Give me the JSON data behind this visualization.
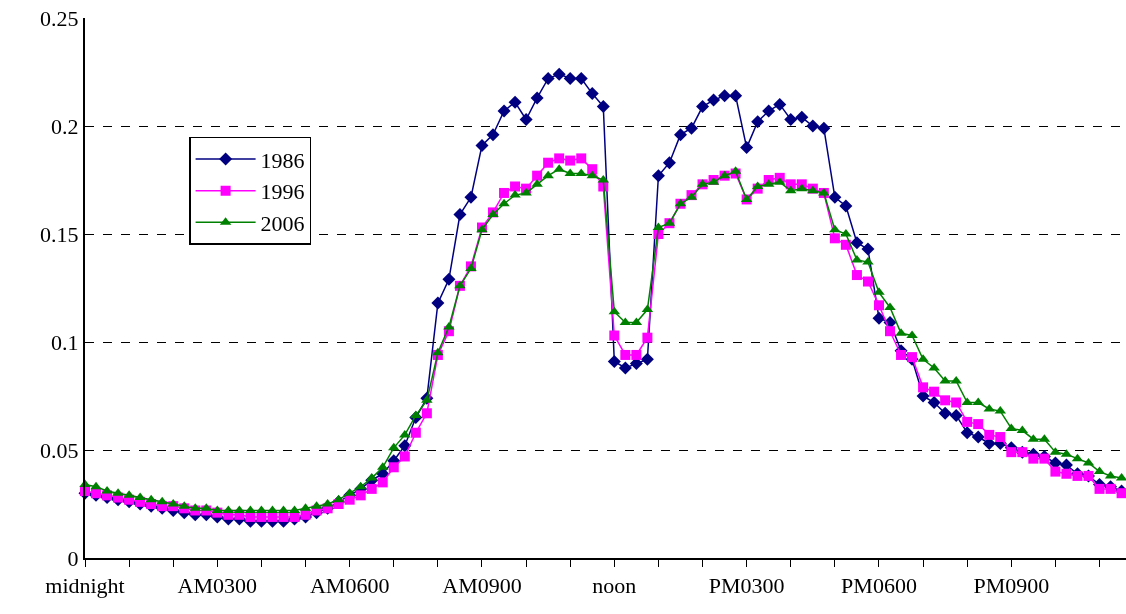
{
  "chart_data": {
    "type": "line",
    "categories": [
      "midnight",
      null,
      null,
      null,
      null,
      null,
      null,
      null,
      null,
      null,
      null,
      null,
      "AM0300",
      null,
      null,
      null,
      null,
      null,
      null,
      null,
      null,
      null,
      null,
      null,
      "AM0600",
      null,
      null,
      null,
      null,
      null,
      null,
      null,
      null,
      null,
      null,
      null,
      "AM0900",
      null,
      null,
      null,
      null,
      null,
      null,
      null,
      null,
      null,
      null,
      null,
      "noon",
      null,
      null,
      null,
      null,
      null,
      null,
      null,
      null,
      null,
      null,
      null,
      "PM0300",
      null,
      null,
      null,
      null,
      null,
      null,
      null,
      null,
      null,
      null,
      null,
      "PM0600",
      null,
      null,
      null,
      null,
      null,
      null,
      null,
      null,
      null,
      null,
      null,
      "PM0900",
      null,
      null,
      null,
      null,
      null,
      null,
      null,
      null,
      null,
      null
    ],
    "series": [
      {
        "name": "1986",
        "color": "#000080",
        "marker": "diamond",
        "values": [
          0.03,
          0.029,
          0.028,
          0.027,
          0.026,
          0.025,
          0.024,
          0.023,
          0.022,
          0.021,
          0.02,
          0.02,
          0.019,
          0.018,
          0.018,
          0.017,
          0.017,
          0.017,
          0.017,
          0.018,
          0.019,
          0.021,
          0.023,
          0.026,
          0.029,
          0.032,
          0.036,
          0.039,
          0.045,
          0.052,
          0.065,
          0.074,
          0.118,
          0.129,
          0.159,
          0.167,
          0.191,
          0.196,
          0.207,
          0.211,
          0.203,
          0.213,
          0.222,
          0.224,
          0.222,
          0.222,
          0.215,
          0.209,
          0.091,
          0.088,
          0.09,
          0.092,
          0.177,
          0.183,
          0.196,
          0.199,
          0.209,
          0.212,
          0.214,
          0.214,
          0.19,
          0.202,
          0.207,
          0.21,
          0.203,
          0.204,
          0.2,
          0.199,
          0.167,
          0.163,
          0.146,
          0.143,
          0.111,
          0.109,
          0.096,
          0.092,
          0.075,
          0.072,
          0.067,
          0.066,
          0.058,
          0.056,
          0.053,
          0.053,
          0.051,
          0.049,
          0.048,
          0.047,
          0.044,
          0.043,
          0.039,
          0.038,
          0.034,
          0.033,
          0.031
        ]
      },
      {
        "name": "1996",
        "color": "#ff00ff",
        "marker": "square",
        "values": [
          0.031,
          0.03,
          0.029,
          0.028,
          0.027,
          0.026,
          0.025,
          0.024,
          0.024,
          0.023,
          0.022,
          0.022,
          0.021,
          0.02,
          0.02,
          0.019,
          0.019,
          0.019,
          0.019,
          0.019,
          0.02,
          0.022,
          0.023,
          0.025,
          0.027,
          0.029,
          0.032,
          0.035,
          0.042,
          0.047,
          0.058,
          0.067,
          0.094,
          0.105,
          0.126,
          0.135,
          0.153,
          0.16,
          0.169,
          0.172,
          0.171,
          0.177,
          0.183,
          0.185,
          0.184,
          0.185,
          0.18,
          0.172,
          0.103,
          0.094,
          0.094,
          0.102,
          0.15,
          0.155,
          0.164,
          0.168,
          0.173,
          0.175,
          0.177,
          0.178,
          0.166,
          0.171,
          0.175,
          0.176,
          0.173,
          0.173,
          0.171,
          0.169,
          0.148,
          0.145,
          0.131,
          0.128,
          0.117,
          0.105,
          0.094,
          0.093,
          0.079,
          0.077,
          0.073,
          0.072,
          0.063,
          0.062,
          0.057,
          0.056,
          0.049,
          0.049,
          0.046,
          0.046,
          0.04,
          0.039,
          0.038,
          0.038,
          0.032,
          0.032,
          0.03
        ]
      },
      {
        "name": "2006",
        "color": "#008000",
        "marker": "triangle",
        "values": [
          0.034,
          0.033,
          0.031,
          0.03,
          0.029,
          0.028,
          0.027,
          0.026,
          0.025,
          0.024,
          0.023,
          0.023,
          0.022,
          0.022,
          0.022,
          0.022,
          0.022,
          0.022,
          0.022,
          0.022,
          0.023,
          0.024,
          0.025,
          0.027,
          0.03,
          0.033,
          0.037,
          0.042,
          0.051,
          0.057,
          0.066,
          0.073,
          0.095,
          0.107,
          0.126,
          0.134,
          0.152,
          0.159,
          0.164,
          0.168,
          0.169,
          0.173,
          0.177,
          0.18,
          0.178,
          0.178,
          0.177,
          0.175,
          0.114,
          0.109,
          0.109,
          0.115,
          0.153,
          0.155,
          0.164,
          0.167,
          0.173,
          0.174,
          0.177,
          0.179,
          0.166,
          0.172,
          0.173,
          0.174,
          0.17,
          0.171,
          0.17,
          0.169,
          0.152,
          0.15,
          0.138,
          0.137,
          0.123,
          0.116,
          0.104,
          0.103,
          0.092,
          0.088,
          0.082,
          0.082,
          0.072,
          0.072,
          0.069,
          0.068,
          0.06,
          0.059,
          0.055,
          0.055,
          0.049,
          0.048,
          0.046,
          0.044,
          0.04,
          0.038,
          0.037
        ]
      }
    ],
    "ylim": [
      0,
      0.25
    ],
    "yticks": [
      0,
      0.05,
      0.1,
      0.15,
      0.2,
      0.25
    ],
    "grid": "y",
    "legend": "top left",
    "line_style": "solid"
  }
}
